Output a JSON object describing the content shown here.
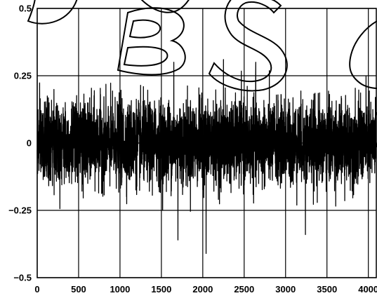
{
  "chart_data": {
    "type": "line",
    "title": "",
    "xlabel": "",
    "ylabel": "",
    "xlim": [
      0,
      4096
    ],
    "ylim": [
      -0.5,
      0.5
    ],
    "grid": true,
    "x_ticks": [
      {
        "value": 0,
        "label": "0"
      },
      {
        "value": 500,
        "label": "500"
      },
      {
        "value": 1000,
        "label": "1000"
      },
      {
        "value": 1500,
        "label": "1500"
      },
      {
        "value": 2000,
        "label": "2000"
      },
      {
        "value": 2500,
        "label": "2500"
      },
      {
        "value": 3000,
        "label": "3000"
      },
      {
        "value": 3500,
        "label": "3500"
      },
      {
        "value": 4000,
        "label": "4000"
      }
    ],
    "y_ticks": [
      {
        "value": 0.5,
        "label": "0.5"
      },
      {
        "value": 0.25,
        "label": "0.25"
      },
      {
        "value": 0,
        "label": "0"
      },
      {
        "value": -0.25,
        "label": "−0.25"
      },
      {
        "value": -0.5,
        "label": "−0.5"
      }
    ],
    "series": [
      {
        "color": "#000000",
        "n_points": 4096,
        "description": "noise signal, typical amplitude ~±0.15, peaks up to ~+0.30 and down to ~−0.41 near x≈2050",
        "notable_values": [
          {
            "x": 2040,
            "y": -0.41
          },
          {
            "x": 2250,
            "y": 0.31
          },
          {
            "x": 1650,
            "y": 0.3
          },
          {
            "x": 2640,
            "y": 0.3
          },
          {
            "x": 1700,
            "y": -0.36
          },
          {
            "x": 3240,
            "y": -0.34
          }
        ]
      }
    ]
  },
  "watermark": {
    "text": "DBS",
    "color": "#000000"
  }
}
